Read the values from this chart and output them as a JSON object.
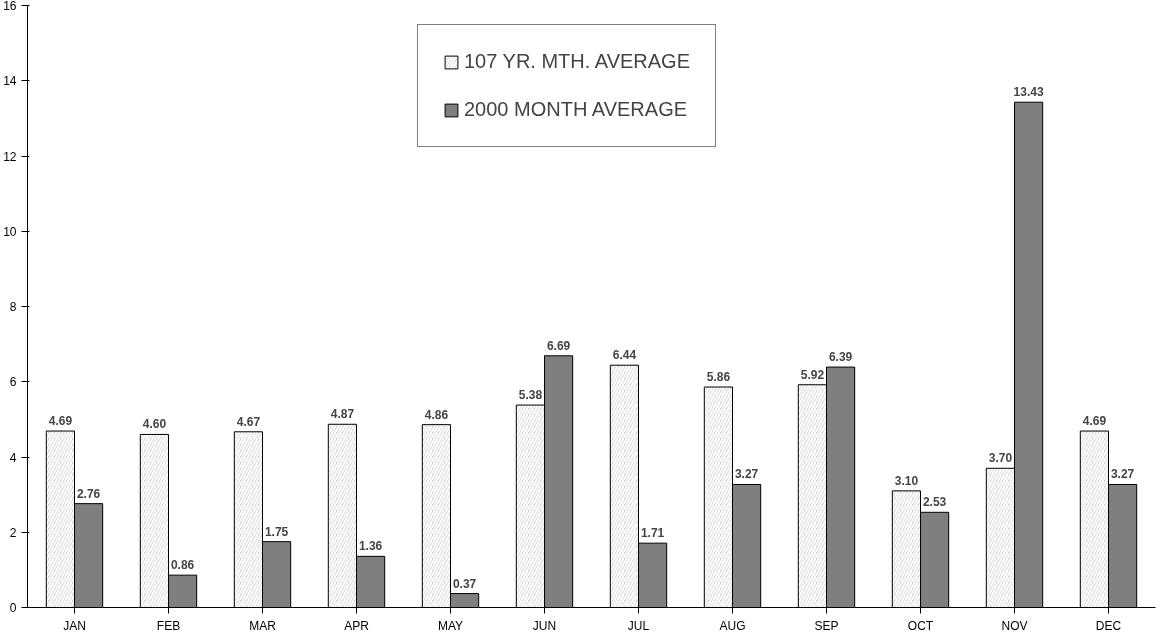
{
  "chart_data": {
    "type": "bar",
    "categories": [
      "JAN",
      "FEB",
      "MAR",
      "APR",
      "MAY",
      "JUN",
      "JUL",
      "AUG",
      "SEP",
      "OCT",
      "NOV",
      "DEC"
    ],
    "series": [
      {
        "name": "107 YR. MTH. AVERAGE",
        "color": "#d0d0d0",
        "values": [
          4.69,
          4.6,
          4.67,
          4.87,
          4.86,
          5.38,
          6.44,
          5.86,
          5.92,
          3.1,
          3.7,
          4.69
        ],
        "value_labels": [
          "4.69",
          "4.60",
          "4.67",
          "4.87",
          "4.86",
          "5.38",
          "6.44",
          "5.86",
          "5.92",
          "3.10",
          "3.70",
          "4.69"
        ]
      },
      {
        "name": "2000 MONTH AVERAGE",
        "color": "#7f7f7f",
        "values": [
          2.76,
          0.86,
          1.75,
          1.36,
          0.37,
          6.69,
          1.71,
          3.27,
          6.39,
          2.53,
          13.43,
          3.27
        ],
        "value_labels": [
          "2.76",
          "0.86",
          "1.75",
          "1.36",
          "0.37",
          "6.69",
          "1.71",
          "3.27",
          "6.39",
          "2.53",
          "13.43",
          "3.27"
        ]
      }
    ],
    "ylim": [
      0,
      16
    ],
    "yticks": [
      0,
      2,
      4,
      6,
      8,
      10,
      12,
      14,
      16
    ],
    "grid": false,
    "legend": "top"
  }
}
